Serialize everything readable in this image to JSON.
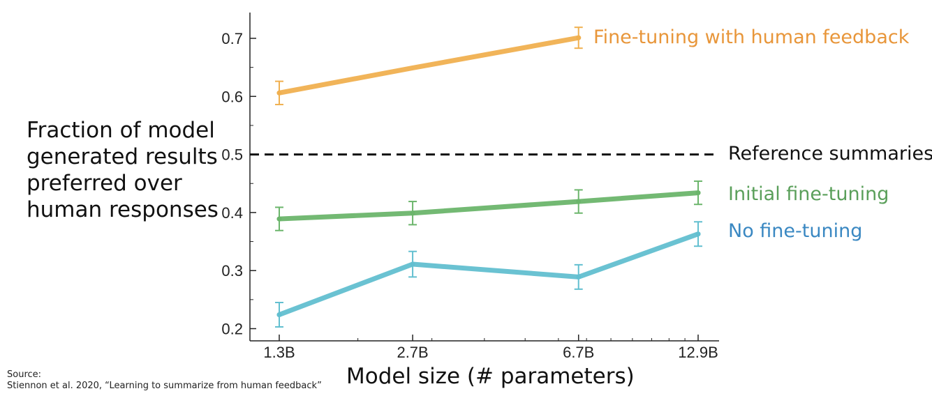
{
  "chart_data": {
    "type": "line",
    "title": "",
    "ylabel_lines": [
      "Fraction of model",
      "generated results",
      "preferred over",
      "human responses"
    ],
    "xlabel": "Model size (# parameters)",
    "categories": [
      "1.3B",
      "2.7B",
      "6.7B",
      "12.9B"
    ],
    "x_scale": "log",
    "x": [
      1.3,
      2.7,
      6.7,
      12.9
    ],
    "ylim": [
      0.19,
      0.74
    ],
    "yticks": [
      0.2,
      0.3,
      0.4,
      0.5,
      0.6,
      0.7
    ],
    "ytick_labels": [
      "0.2",
      "0.3",
      "0.4",
      "0.5",
      "0.6",
      "0.7"
    ],
    "grid": false,
    "reference_line": {
      "value": 0.5,
      "name": "Reference summaries",
      "style": "dashed",
      "color": "#111111"
    },
    "series": [
      {
        "name": "Fine-tuning with human feedback",
        "color": "#f0b050",
        "label_color": "#e8963a",
        "values": [
          0.606,
          0.649,
          0.701,
          null
        ],
        "errors": [
          0.02,
          null,
          0.018,
          null
        ]
      },
      {
        "name": "Initial fine-tuning",
        "color": "#6bb56b",
        "label_color": "#5a9f5a",
        "values": [
          0.389,
          0.399,
          0.419,
          0.434
        ],
        "errors": [
          0.02,
          0.02,
          0.02,
          0.02
        ]
      },
      {
        "name": "No fine-tuning",
        "color": "#62bfd0",
        "label_color": "#3a88c2",
        "values": [
          0.224,
          0.311,
          0.289,
          0.363
        ],
        "errors": [
          0.021,
          0.022,
          0.021,
          0.021
        ]
      }
    ]
  },
  "source": {
    "heading": "Source:",
    "citation": "Stiennon et al. 2020, “Learning to summarize from human feedback”"
  }
}
